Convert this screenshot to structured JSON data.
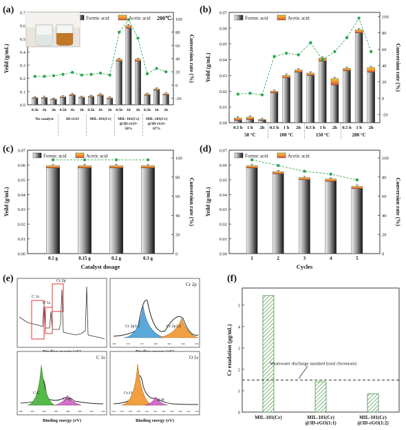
{
  "figure": {
    "panel_labels": [
      "(a)",
      "(b)",
      "(c)",
      "(d)",
      "(e)",
      "(f)"
    ]
  },
  "colors": {
    "formic_top": "#e8e8e8",
    "formic_mid": "#9a9a9a",
    "formic_dark": "#1a1a1a",
    "acetic_top": "#f7d23a",
    "acetic_bottom": "#e8502a",
    "conversion": "#2fa84f",
    "xps_c1": "#56b848",
    "xps_c2": "#d16ec8",
    "xps_o1": "#f0a040",
    "xps_cr1": "#5aa8d8",
    "xps_cr2": "#f0a040",
    "hatch": "#5aa45a"
  },
  "chart_data": [
    {
      "id": "a",
      "type": "bar",
      "title": "200℃",
      "legend": [
        "Formic acid",
        "Acetic acid"
      ],
      "ylabel": "Yeild (g/mL)",
      "y2label": "Conversion rate (%)",
      "ylim": [
        0,
        0.7
      ],
      "yticks": [
        "0.0",
        "0.1",
        "0.2",
        "0.3",
        "0.4",
        "0.5",
        "0.6",
        "0.7"
      ],
      "y2lim": [
        -30,
        110
      ],
      "y2ticks": [
        "-20",
        "0",
        "20",
        "40",
        "60",
        "80",
        "100"
      ],
      "categories": [
        "0.5h",
        "1h",
        "2h",
        "0.5h",
        "1h",
        "2h",
        "0.5h",
        "1h",
        "2h",
        "0.5h",
        "1h",
        "2h",
        "0.5h",
        "1h",
        "2h"
      ],
      "groups": [
        "No catalyst",
        "3D-rGO",
        "MIL-101(Cr)",
        "MIL-101(Cr)\n@3D-rGO-\n50%",
        "MIL-101(Cr)\n@3D-rGO-\n67%"
      ],
      "formic": [
        0.048,
        0.05,
        0.038,
        0.055,
        0.07,
        0.052,
        0.058,
        0.068,
        0.046,
        0.33,
        0.58,
        0.33,
        0.072,
        0.11,
        0.075
      ],
      "acetic": [
        0.006,
        0.006,
        0.005,
        0.006,
        0.008,
        0.006,
        0.006,
        0.008,
        0.006,
        0.015,
        0.02,
        0.015,
        0.008,
        0.01,
        0.008
      ],
      "conversion": [
        13,
        13,
        14,
        16,
        19,
        15,
        16,
        18,
        15,
        80,
        99,
        71,
        17,
        25,
        20
      ],
      "inset": "photo"
    },
    {
      "id": "b",
      "type": "bar",
      "legend": [
        "Formic acid",
        "Acetic acid"
      ],
      "ylabel": "Yeild (g/mL)",
      "y2label": "Conversion rate (%)",
      "ylim": [
        0,
        0.07
      ],
      "yticks": [
        "0.00",
        "0.01",
        "0.02",
        "0.03",
        "0.04",
        "0.05",
        "0.06",
        "0.07"
      ],
      "y2lim": [
        -30,
        105
      ],
      "y2ticks": [
        "-20",
        "0",
        "20",
        "40",
        "60",
        "80",
        "100"
      ],
      "categories": [
        "0.5 h",
        "1 h",
        "2h",
        "0.5 h",
        "1 h",
        "2h",
        "0.5 h",
        "1 h",
        "2h",
        "0.5 h",
        "1 h",
        "2h"
      ],
      "groups": [
        "50 °C",
        "100 °C",
        "150 °C",
        "200 °C"
      ],
      "formic": [
        0.0015,
        0.002,
        0.0015,
        0.019,
        0.0285,
        0.032,
        0.03,
        0.039,
        0.024,
        0.033,
        0.057,
        0.032
      ],
      "acetic": [
        0.0015,
        0.0015,
        0.0005,
        0.001,
        0.0015,
        0.0015,
        0.0015,
        0.002,
        0.004,
        0.0015,
        0.002,
        0.003
      ],
      "conversion": [
        5,
        6,
        4,
        51,
        55,
        53,
        68,
        47,
        57,
        74,
        98,
        57
      ]
    },
    {
      "id": "c",
      "type": "bar",
      "legend": [
        "Formic acid",
        "Acetic acid"
      ],
      "ylabel": "Yeild (g/mL)",
      "y2label": "Conversion rate (%)",
      "xlabel": "Catalyst dosage",
      "ylim": [
        0,
        0.07
      ],
      "yticks": [
        "0.00",
        "0.01",
        "0.02",
        "0.03",
        "0.04",
        "0.05",
        "0.06",
        "0.07"
      ],
      "y2lim": [
        0,
        108
      ],
      "y2ticks": [
        "0",
        "20",
        "40",
        "60",
        "80",
        "100"
      ],
      "categories": [
        "0.1 g",
        "0.15 g",
        "0.2 g",
        "0.3 g"
      ],
      "formic": [
        0.058,
        0.058,
        0.058,
        0.058
      ],
      "acetic": [
        0.0015,
        0.0015,
        0.0015,
        0.0015
      ],
      "conversion": [
        98,
        98,
        98,
        98
      ]
    },
    {
      "id": "d",
      "type": "bar",
      "legend": [
        "Formic acid",
        "Acetic acid"
      ],
      "ylabel": "Yeild (g/mL)",
      "y2label": "Conversion rate (%)",
      "xlabel": "Cycles",
      "ylim": [
        0,
        0.07
      ],
      "yticks": [
        "0.00",
        "0.01",
        "0.02",
        "0.03",
        "0.04",
        "0.05",
        "0.06",
        "0.07"
      ],
      "y2lim": [
        0,
        108
      ],
      "y2ticks": [
        "0",
        "20",
        "40",
        "60",
        "80",
        "100"
      ],
      "categories": [
        "1",
        "2",
        "3",
        "4",
        "5"
      ],
      "formic": [
        0.058,
        0.054,
        0.05,
        0.049,
        0.044
      ],
      "acetic": [
        0.0015,
        0.0015,
        0.0015,
        0.0015,
        0.0015
      ],
      "conversion": [
        98,
        92,
        86,
        83,
        77
      ]
    },
    {
      "id": "e",
      "type": "line",
      "subplots": [
        {
          "title": "",
          "xlabel": "Binding energy (eV)",
          "peaks": [
            "C 1s",
            "O 1s",
            "Cr 2p"
          ]
        },
        {
          "title": "Cr 2p",
          "xlabel": "Binding energy (eV)",
          "peaks": [
            "Cr 2p3/2",
            "Cr 2p1/2"
          ],
          "xticks": [
            "565",
            "570",
            "575",
            "580",
            "585",
            "590",
            "595"
          ]
        },
        {
          "title": "C 1s",
          "xlabel": "Binding energy (eV)",
          "peaks": [
            "C-C",
            "C=O"
          ],
          "xticks": [
            "280",
            "282",
            "284",
            "286",
            "288",
            "290",
            "292",
            "294"
          ]
        },
        {
          "title": "O 1s",
          "xlabel": "Binding energy (eV)",
          "peaks": [
            "Cr-O",
            "O-H"
          ],
          "xticks": [
            "524",
            "526",
            "528",
            "530",
            "532",
            "534",
            "536",
            "538",
            "540",
            "542",
            "544"
          ]
        }
      ]
    },
    {
      "id": "f",
      "type": "bar",
      "ylabel": "Cr exudation (μg/mL)",
      "ylim": [
        0,
        5.8
      ],
      "yticks": [
        "0",
        "1",
        "2",
        "3",
        "4",
        "5"
      ],
      "categories": [
        "MIL-101(Cr)",
        "MIL-101(Cr)\n@3D-rGO(1:1)",
        "MIL-101(Cr)\n@3D-rGO(1:2)"
      ],
      "values": [
        5.45,
        1.42,
        0.85
      ],
      "reference_line": {
        "value": 1.5,
        "label": "Wastewater discharge standard (total chromium)"
      }
    }
  ]
}
